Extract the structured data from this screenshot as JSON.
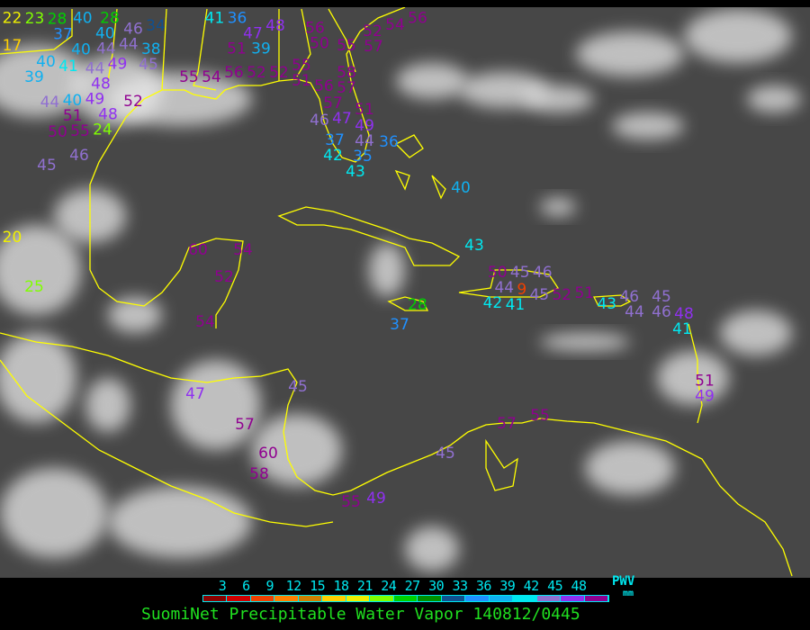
{
  "legend": {
    "ticks": [
      "3",
      "6",
      "9",
      "12",
      "15",
      "18",
      "21",
      "24",
      "27",
      "30",
      "33",
      "36",
      "39",
      "42",
      "45",
      "48"
    ],
    "colors": [
      "#8b0000",
      "#d00000",
      "#f04000",
      "#ff8000",
      "#d08000",
      "#ffd000",
      "#f0f000",
      "#80ff00",
      "#00d000",
      "#009000",
      "#105090",
      "#2090ff",
      "#10b0f0",
      "#00e8f0",
      "#9070d0",
      "#9030f0",
      "#900090"
    ],
    "unit": "PWV",
    "unit_sub": "mm"
  },
  "title": "SuomiNet Precipitable Water Vapor 140812/0445",
  "map": {
    "background": "#474747",
    "coast_color": "#ffff00",
    "stations": [
      "22",
      "23",
      "28",
      "37",
      "40",
      "28",
      "40",
      "34",
      "40",
      "44",
      "46",
      "44",
      "38",
      "17",
      "40",
      "41",
      "49",
      "45",
      "39",
      "44",
      "48",
      "44",
      "40",
      "49",
      "48",
      "52",
      "51",
      "50",
      "55",
      "24",
      "45",
      "46",
      "41",
      "36",
      "48",
      "47",
      "51",
      "39",
      "56",
      "50",
      "55",
      "52",
      "57",
      "54",
      "56",
      "58",
      "55",
      "54",
      "56",
      "52",
      "52",
      "55",
      "51",
      "56",
      "57",
      "57",
      "51",
      "46",
      "47",
      "49",
      "37",
      "42",
      "43",
      "44",
      "35",
      "36",
      "40",
      "43",
      "50",
      "45",
      "46",
      "44",
      "9",
      "42",
      "41",
      "45",
      "52",
      "51",
      "28",
      "37",
      "43",
      "46",
      "44",
      "45",
      "46",
      "48",
      "41",
      "51",
      "49",
      "20",
      "25",
      "60",
      "54",
      "52",
      "54",
      "47",
      "45",
      "57",
      "60",
      "58",
      "55",
      "49",
      "45",
      "57",
      "55"
    ]
  }
}
